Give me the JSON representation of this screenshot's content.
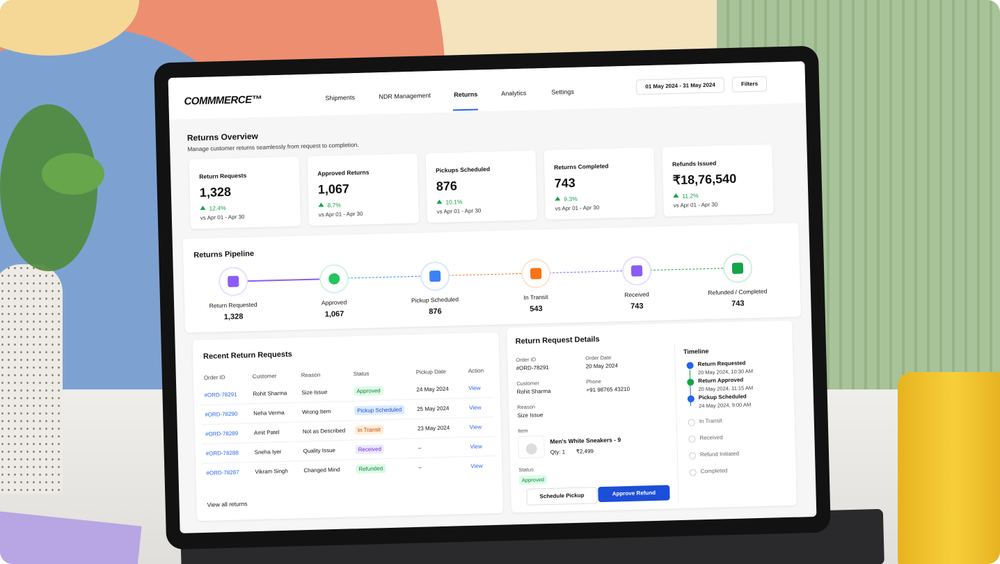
{
  "nav": {
    "brand": "COMMMERCE™",
    "items": [
      "Shipments",
      "NDR Management",
      "Returns",
      "Analytics",
      "Settings"
    ],
    "date_range": "01 May 2024 - 31 May 2024",
    "filters": "Filters"
  },
  "overview": {
    "title": "Returns Overview",
    "subtitle": "Manage customer returns seamlessly from request to completion.",
    "kpis": [
      {
        "label": "Return Requests",
        "value": "1,328",
        "change": "12.4%",
        "compare": "vs Apr 01 - Apr 30"
      },
      {
        "label": "Approved Returns",
        "value": "1,067",
        "change": "8.7%",
        "compare": "vs Apr 01 - Apr 30"
      },
      {
        "label": "Pickups Scheduled",
        "value": "876",
        "change": "10.1%",
        "compare": "vs Apr 01 - Apr 30"
      },
      {
        "label": "Returns Completed",
        "value": "743",
        "change": "9.3%",
        "compare": "vs Apr 01 - Apr 30"
      },
      {
        "label": "Refunds Issued",
        "value": "₹18,76,540",
        "change": "11.2%",
        "compare": "vs Apr 01 - Apr 30"
      }
    ]
  },
  "pipeline": {
    "title": "Returns Pipeline",
    "stages": [
      {
        "label": "Return Requested",
        "count": "1,328"
      },
      {
        "label": "Approved",
        "count": "1,067"
      },
      {
        "label": "Pickup Scheduled",
        "count": "876"
      },
      {
        "label": "In Transit",
        "count": "543"
      },
      {
        "label": "Received",
        "count": "743"
      },
      {
        "label": "Refunded / Completed",
        "count": "743"
      }
    ]
  },
  "recent": {
    "title": "Recent Return Requests",
    "columns": [
      "Order ID",
      "Customer",
      "Reason",
      "Status",
      "Pickup Date",
      "Action"
    ],
    "rows": [
      [
        "#ORD-78291",
        "Rohit Sharma",
        "Size Issue",
        "Approved",
        "24 May 2024",
        "View"
      ],
      [
        "#ORD-78290",
        "Neha Verma",
        "Wrong Item",
        "Pickup Scheduled",
        "25 May 2024",
        "View"
      ],
      [
        "#ORD-78289",
        "Amit Patel",
        "Not as Described",
        "In Transit",
        "23 May 2024",
        "View"
      ],
      [
        "#ORD-78288",
        "Sneha Iyer",
        "Quality Issue",
        "Received",
        "–",
        "View"
      ],
      [
        "#ORD-78287",
        "Vikram Singh",
        "Changed Mind",
        "Refunded",
        "–",
        "View"
      ]
    ],
    "view_all": "View all returns"
  },
  "details": {
    "title": "Return Request Details",
    "fields": [
      {
        "label": "Order ID",
        "value": "#ORD-78291"
      },
      {
        "label": "Order Date",
        "value": "20 May 2024"
      },
      {
        "label": "Customer",
        "value": "Rohit Sharma"
      },
      {
        "label": "Phone",
        "value": "+91 98765 43210"
      },
      {
        "label": "Reason",
        "value": "Size Issue"
      }
    ],
    "item_label": "Item",
    "item_name": "Men's White Sneakers - 9",
    "qty": "Qty: 1",
    "price": "₹2,499",
    "status_label": "Status",
    "status": "Approved",
    "buttons": [
      "Schedule Pickup",
      "Approve Refund"
    ]
  },
  "timeline": {
    "title": "Timeline",
    "events": [
      {
        "label": "Return Requested",
        "time": "20 May 2024, 10:30 AM"
      },
      {
        "label": "Return Approved",
        "time": "20 May 2024, 11:15 AM"
      },
      {
        "label": "Pickup Scheduled",
        "time": "24 May 2024, 9:00 AM"
      },
      {
        "label": "In Transit"
      },
      {
        "label": "Received"
      },
      {
        "label": "Refund Initiated"
      },
      {
        "label": "Completed"
      }
    ]
  }
}
